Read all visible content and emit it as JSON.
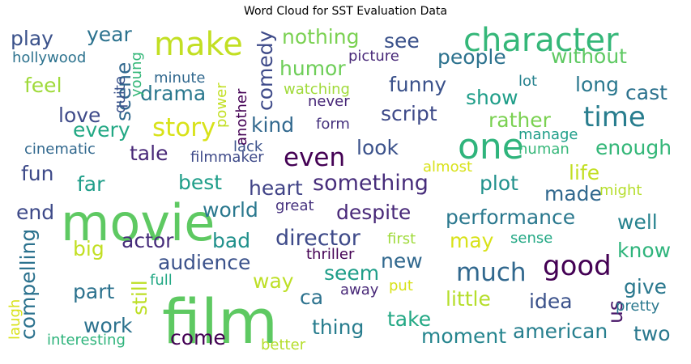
{
  "title": "Word Cloud for SST Evaluation Data",
  "words": [
    {
      "text": "film",
      "color": "#5ec962"
    },
    {
      "text": "movie",
      "color": "#5ec962"
    },
    {
      "text": "one",
      "color": "#2fb47c"
    },
    {
      "text": "character",
      "color": "#35b779"
    },
    {
      "text": "make",
      "color": "#c2df23"
    },
    {
      "text": "good",
      "color": "#440154"
    },
    {
      "text": "time",
      "color": "#287d8e"
    },
    {
      "text": "story",
      "color": "#d8e219"
    },
    {
      "text": "even",
      "color": "#440154"
    },
    {
      "text": "much",
      "color": "#31688e"
    },
    {
      "text": "director",
      "color": "#3e4a89"
    },
    {
      "text": "something",
      "color": "#472d7b"
    },
    {
      "text": "performance",
      "color": "#2a788e"
    },
    {
      "text": "look",
      "color": "#3b528b"
    },
    {
      "text": "enough",
      "color": "#35b779"
    },
    {
      "text": "despite",
      "color": "#482878"
    },
    {
      "text": "plot",
      "color": "#21918c"
    },
    {
      "text": "best",
      "color": "#1f9e89"
    },
    {
      "text": "heart",
      "color": "#414487"
    },
    {
      "text": "little",
      "color": "#b5de2b"
    },
    {
      "text": "way",
      "color": "#bddf26"
    },
    {
      "text": "thing",
      "color": "#287d8e"
    },
    {
      "text": "take",
      "color": "#22a884"
    },
    {
      "text": "work",
      "color": "#2c728e"
    },
    {
      "text": "moment",
      "color": "#25858e"
    },
    {
      "text": "american",
      "color": "#277f8e"
    },
    {
      "text": "two",
      "color": "#2a788e"
    },
    {
      "text": "funny",
      "color": "#3b528b"
    },
    {
      "text": "people",
      "color": "#2c728e"
    },
    {
      "text": "humor",
      "color": "#6ece58"
    },
    {
      "text": "nothing",
      "color": "#7ad151"
    },
    {
      "text": "without",
      "color": "#5ec962"
    },
    {
      "text": "drama",
      "color": "#2a788e"
    },
    {
      "text": "love",
      "color": "#3e4a89"
    },
    {
      "text": "rather",
      "color": "#7ad151"
    },
    {
      "text": "script",
      "color": "#3e4a89"
    },
    {
      "text": "kind",
      "color": "#31688e"
    },
    {
      "text": "every",
      "color": "#22a884"
    },
    {
      "text": "feel",
      "color": "#9fda3a"
    },
    {
      "text": "play",
      "color": "#3b528b"
    },
    {
      "text": "see",
      "color": "#3b528b"
    },
    {
      "text": "year",
      "color": "#2c728e"
    },
    {
      "text": "show",
      "color": "#1f9e89"
    },
    {
      "text": "long",
      "color": "#2a788e"
    },
    {
      "text": "cast",
      "color": "#2c728e"
    },
    {
      "text": "fun",
      "color": "#3e4a89"
    },
    {
      "text": "tale",
      "color": "#482878"
    },
    {
      "text": "far",
      "color": "#1f9e89"
    },
    {
      "text": "life",
      "color": "#c2df23"
    },
    {
      "text": "made",
      "color": "#31688e"
    },
    {
      "text": "world",
      "color": "#2a788e"
    },
    {
      "text": "end",
      "color": "#3e4a89"
    },
    {
      "text": "actor",
      "color": "#472d7b"
    },
    {
      "text": "bad",
      "color": "#21918c"
    },
    {
      "text": "well",
      "color": "#26828e"
    },
    {
      "text": "may",
      "color": "#d8e219"
    },
    {
      "text": "big",
      "color": "#c2df23"
    },
    {
      "text": "know",
      "color": "#2fb47c"
    },
    {
      "text": "audience",
      "color": "#3b528b"
    },
    {
      "text": "new",
      "color": "#31688e"
    },
    {
      "text": "seem",
      "color": "#1f9e89"
    },
    {
      "text": "part",
      "color": "#2c728e"
    },
    {
      "text": "give",
      "color": "#2a788e"
    },
    {
      "text": "idea",
      "color": "#3b528b"
    },
    {
      "text": "ca",
      "color": "#2c728e"
    },
    {
      "text": "us",
      "color": "#481668"
    },
    {
      "text": "come",
      "color": "#440154"
    },
    {
      "text": "scene",
      "color": "#31688e"
    },
    {
      "text": "comedy",
      "color": "#3e4a89"
    },
    {
      "text": "compelling",
      "color": "#2c728e"
    },
    {
      "text": "still",
      "color": "#bddf26"
    },
    {
      "text": "great",
      "color": "#46327e"
    },
    {
      "text": "cinematic",
      "color": "#31688e"
    },
    {
      "text": "picture",
      "color": "#482878"
    },
    {
      "text": "watching",
      "color": "#a0da39"
    },
    {
      "text": "minute",
      "color": "#31688e"
    },
    {
      "text": "hollywood",
      "color": "#2c728e"
    },
    {
      "text": "lot",
      "color": "#26828e"
    },
    {
      "text": "manage",
      "color": "#1f9e89"
    },
    {
      "text": "human",
      "color": "#35b779"
    },
    {
      "text": "filmmaker",
      "color": "#3e4a89"
    },
    {
      "text": "lack",
      "color": "#3b528b"
    },
    {
      "text": "almost",
      "color": "#d8e219"
    },
    {
      "text": "might",
      "color": "#b5de2b"
    },
    {
      "text": "never",
      "color": "#482878"
    },
    {
      "text": "form",
      "color": "#46327e"
    },
    {
      "text": "first",
      "color": "#9fda3a"
    },
    {
      "text": "sense",
      "color": "#22a884"
    },
    {
      "text": "thriller",
      "color": "#440154"
    },
    {
      "text": "full",
      "color": "#22a884"
    },
    {
      "text": "away",
      "color": "#482878"
    },
    {
      "text": "put",
      "color": "#d8e219"
    },
    {
      "text": "pretty",
      "color": "#2a788e"
    },
    {
      "text": "interesting",
      "color": "#2fb47c"
    },
    {
      "text": "better",
      "color": "#b5de2b"
    },
    {
      "text": "laugh",
      "color": "#d8e219"
    },
    {
      "text": "quite",
      "color": "#3b528b"
    },
    {
      "text": "young",
      "color": "#35b779"
    },
    {
      "text": "power",
      "color": "#c2df23"
    },
    {
      "text": "another",
      "color": "#440154"
    }
  ]
}
